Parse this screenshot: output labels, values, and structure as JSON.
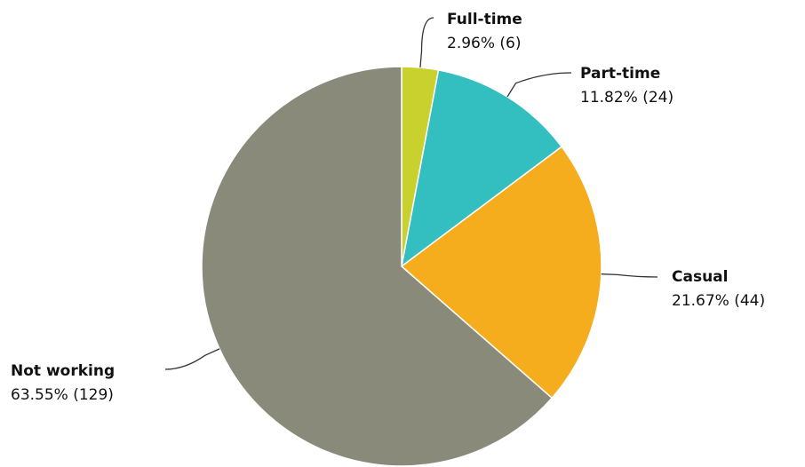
{
  "chart_data": {
    "type": "pie",
    "start_angle_deg": 0,
    "direction": "clockwise",
    "slices": [
      {
        "label": "Full-time",
        "value_text": "2.96% (6)",
        "percent": 2.96,
        "count": 6,
        "color": "#c9d12e"
      },
      {
        "label": "Part-time",
        "value_text": "11.82% (24)",
        "percent": 11.82,
        "count": 24,
        "color": "#33bebf"
      },
      {
        "label": "Casual",
        "value_text": "21.67% (44)",
        "percent": 21.67,
        "count": 44,
        "color": "#f5ad1e"
      },
      {
        "label": "Not working",
        "value_text": "63.55% (129)",
        "percent": 63.55,
        "count": 129,
        "color": "#898a79"
      }
    ]
  }
}
